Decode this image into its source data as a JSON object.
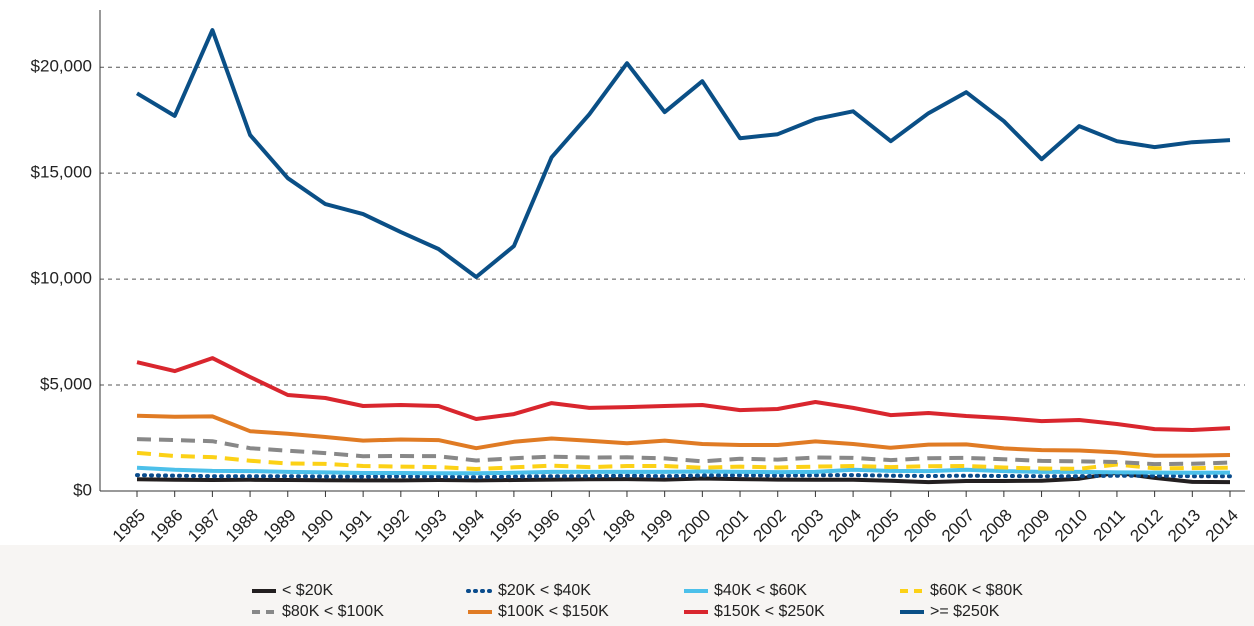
{
  "chart_data": {
    "type": "line",
    "categories": [
      "1985",
      "1986",
      "1987",
      "1988",
      "1989",
      "1990",
      "1991",
      "1992",
      "1993",
      "1994",
      "1995",
      "1996",
      "1997",
      "1998",
      "1999",
      "2000",
      "2001",
      "2002",
      "2003",
      "2004",
      "2005",
      "2006",
      "2007",
      "2008",
      "2009",
      "2010",
      "2011",
      "2012",
      "2013",
      "2014"
    ],
    "ylim": [
      0,
      22700
    ],
    "yticks": [
      {
        "value": 0,
        "label": "$0"
      },
      {
        "value": 5000,
        "label": "$5,000"
      },
      {
        "value": 10000,
        "label": "$10,000"
      },
      {
        "value": 15000,
        "label": "$15,000"
      },
      {
        "value": 20000,
        "label": "$20,000"
      }
    ],
    "grid": true,
    "legend": "bottom",
    "series": [
      {
        "name": "< $20K",
        "color": "#231f20",
        "dash": "solid",
        "values": [
          550,
          530,
          520,
          530,
          520,
          510,
          500,
          500,
          520,
          500,
          520,
          540,
          550,
          560,
          540,
          590,
          560,
          540,
          530,
          530,
          480,
          420,
          470,
          470,
          480,
          580,
          860,
          620,
          430,
          420
        ]
      },
      {
        "name": "$20K < $40K",
        "color": "#0a4c8c",
        "dash": "dotted",
        "values": [
          750,
          720,
          700,
          700,
          700,
          680,
          680,
          690,
          680,
          650,
          680,
          700,
          700,
          720,
          700,
          730,
          740,
          730,
          740,
          750,
          720,
          710,
          720,
          710,
          700,
          700,
          720,
          720,
          700,
          700
        ]
      },
      {
        "name": "$40K < $60K",
        "color": "#4cc0ea",
        "dash": "solid",
        "values": [
          1100,
          1000,
          950,
          940,
          900,
          880,
          850,
          850,
          840,
          840,
          860,
          900,
          900,
          900,
          900,
          920,
          900,
          890,
          900,
          1000,
          950,
          940,
          1000,
          940,
          900,
          900,
          880,
          870,
          860,
          870
        ]
      },
      {
        "name": "$60K < $80K",
        "color": "#fcd116",
        "dash": "dashed",
        "values": [
          1800,
          1650,
          1600,
          1430,
          1300,
          1280,
          1180,
          1150,
          1130,
          1040,
          1120,
          1200,
          1130,
          1180,
          1180,
          1100,
          1150,
          1110,
          1150,
          1180,
          1130,
          1170,
          1180,
          1110,
          1060,
          1050,
          1250,
          1070,
          1080,
          1100
        ]
      },
      {
        "name": "$80K < $100K",
        "color": "#888888",
        "dash": "dashed",
        "values": [
          2450,
          2400,
          2350,
          2020,
          1900,
          1790,
          1640,
          1650,
          1640,
          1440,
          1550,
          1620,
          1580,
          1590,
          1540,
          1400,
          1520,
          1480,
          1580,
          1560,
          1460,
          1550,
          1560,
          1500,
          1420,
          1400,
          1370,
          1270,
          1290,
          1340
        ]
      },
      {
        "name": "$100K < $150K",
        "color": "#e07b24",
        "dash": "solid",
        "values": [
          3550,
          3500,
          3520,
          2820,
          2700,
          2550,
          2380,
          2430,
          2400,
          2020,
          2320,
          2480,
          2370,
          2250,
          2380,
          2220,
          2170,
          2170,
          2340,
          2220,
          2040,
          2190,
          2200,
          2010,
          1930,
          1910,
          1820,
          1660,
          1670,
          1700
        ]
      },
      {
        "name": "$150K < $250K",
        "color": "#d9262e",
        "dash": "solid",
        "values": [
          6080,
          5660,
          6270,
          5380,
          4530,
          4390,
          4010,
          4060,
          4010,
          3400,
          3630,
          4150,
          3920,
          3960,
          4010,
          4060,
          3820,
          3870,
          4200,
          3920,
          3580,
          3680,
          3540,
          3440,
          3300,
          3350,
          3160,
          2920,
          2880,
          2970
        ]
      },
      {
        "name": ">= $250K",
        "color": "#0a4f86",
        "dash": "solid",
        "values": [
          18770,
          17700,
          21750,
          16800,
          14760,
          13540,
          13070,
          12220,
          11420,
          10100,
          11560,
          15750,
          17780,
          20190,
          17880,
          19340,
          16650,
          16840,
          17550,
          17920,
          16510,
          17830,
          18820,
          17450,
          15660,
          17220,
          16510,
          16230,
          16460,
          16560
        ]
      }
    ]
  }
}
